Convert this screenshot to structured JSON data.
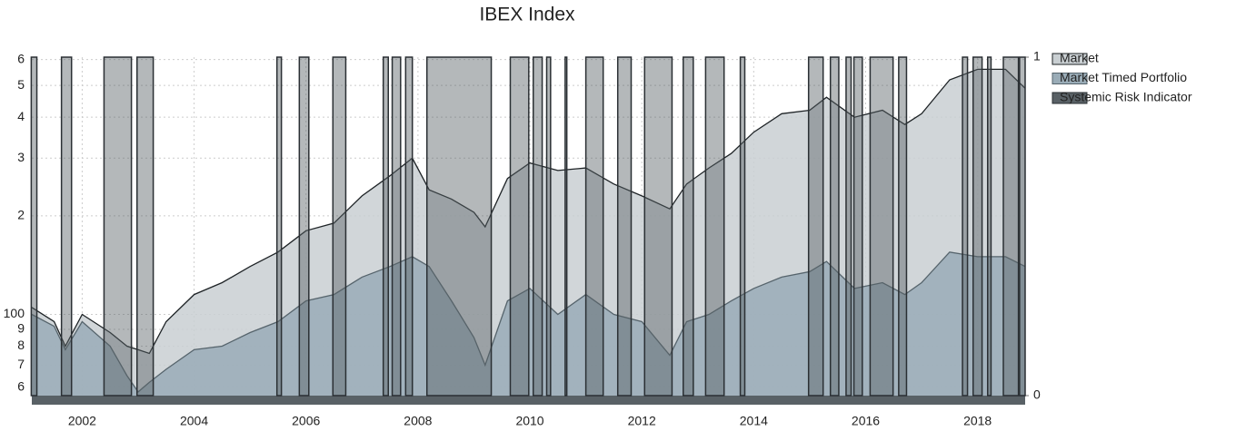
{
  "chart_data": {
    "type": "line",
    "title": "IBEX Index",
    "log_y": true,
    "grid": true,
    "legend": "right",
    "xlim": [
      2001.1,
      2018.85
    ],
    "xticks": [
      2002,
      2004,
      2006,
      2008,
      2010,
      2012,
      2014,
      2016,
      2018
    ],
    "ylim": [
      56.5,
      610
    ],
    "yticks": [
      {
        "value": 60,
        "label": "6"
      },
      {
        "value": 70,
        "label": "7"
      },
      {
        "value": 80,
        "label": "8"
      },
      {
        "value": 90,
        "label": "9"
      },
      100,
      {
        "value": 200,
        "label": "2"
      },
      {
        "value": 300,
        "label": "3"
      },
      {
        "value": 400,
        "label": "4"
      },
      {
        "value": 500,
        "label": "5"
      },
      {
        "value": 600,
        "label": "6"
      }
    ],
    "y2lim": [
      0,
      1
    ],
    "y2ticks": [
      0,
      1
    ],
    "x": [
      2001.1,
      2001.5,
      2001.7,
      2002.0,
      2002.5,
      2002.8,
      2003.0,
      2003.2,
      2003.5,
      2004.0,
      2004.5,
      2005.0,
      2005.5,
      2006.0,
      2006.5,
      2007.0,
      2007.5,
      2007.9,
      2008.2,
      2008.6,
      2009.0,
      2009.2,
      2009.6,
      2010.0,
      2010.5,
      2011.0,
      2011.5,
      2012.0,
      2012.5,
      2012.8,
      2013.2,
      2013.6,
      2014.0,
      2014.5,
      2015.0,
      2015.3,
      2015.8,
      2016.3,
      2016.7,
      2017.0,
      2017.5,
      2018.0,
      2018.5,
      2018.85
    ],
    "series": [
      {
        "name": "Market",
        "color": "#c9cfd2",
        "line_color": "#1e2326",
        "values": [
          105,
          95,
          80,
          100,
          88,
          80,
          78,
          76,
          95,
          115,
          125,
          140,
          155,
          180,
          190,
          230,
          265,
          300,
          240,
          225,
          205,
          185,
          260,
          290,
          275,
          280,
          250,
          230,
          210,
          250,
          280,
          310,
          360,
          410,
          420,
          460,
          400,
          420,
          380,
          410,
          520,
          560,
          560,
          490
        ]
      },
      {
        "name": "Market Timed Portfolio",
        "color": "#9aacb7",
        "line_color": "#56646c",
        "values": [
          100,
          92,
          78,
          95,
          80,
          65,
          58,
          62,
          68,
          78,
          80,
          88,
          95,
          110,
          115,
          130,
          140,
          150,
          140,
          110,
          85,
          70,
          110,
          120,
          100,
          115,
          100,
          95,
          75,
          95,
          100,
          110,
          120,
          130,
          135,
          145,
          120,
          125,
          115,
          125,
          155,
          150,
          150,
          140
        ]
      },
      {
        "name": "Systemic Risk Indicator",
        "color": "#596166",
        "axis": "y2",
        "x": [
          2001.09,
          2001.19,
          2001.63,
          2001.81,
          2002.39,
          2002.88,
          2002.98,
          2003.27,
          2005.48,
          2005.56,
          2005.88,
          2006.05,
          2006.48,
          2006.71,
          2007.38,
          2007.47,
          2007.54,
          2007.69,
          2007.78,
          2007.9,
          2008.16,
          2009.31,
          2009.65,
          2009.98,
          2010.06,
          2010.22,
          2010.3,
          2010.37,
          2010.63,
          2010.66,
          2011.0,
          2011.31,
          2011.57,
          2011.81,
          2012.05,
          2012.54,
          2012.74,
          2012.92,
          2013.14,
          2013.47,
          2013.76,
          2013.84,
          2014.98,
          2015.24,
          2015.37,
          2015.52,
          2015.65,
          2015.74,
          2015.79,
          2015.94,
          2016.08,
          2016.49,
          2016.59,
          2016.73,
          2017.73,
          2017.82,
          2017.92,
          2018.08,
          2018.18,
          2018.24,
          2018.46,
          2018.73,
          2018.75,
          2018.85
        ],
        "values": [
          1,
          0,
          1,
          0,
          1,
          0,
          1,
          0,
          1,
          0,
          1,
          0,
          1,
          0,
          1,
          0,
          1,
          0,
          1,
          0,
          1,
          0,
          1,
          0,
          1,
          0,
          1,
          0,
          1,
          0,
          1,
          0,
          1,
          0,
          1,
          0,
          1,
          0,
          1,
          0,
          1,
          0,
          1,
          0,
          1,
          0,
          1,
          0,
          1,
          0,
          1,
          0,
          1,
          0,
          1,
          0,
          1,
          0,
          1,
          0,
          1,
          0,
          1,
          0
        ]
      }
    ]
  }
}
